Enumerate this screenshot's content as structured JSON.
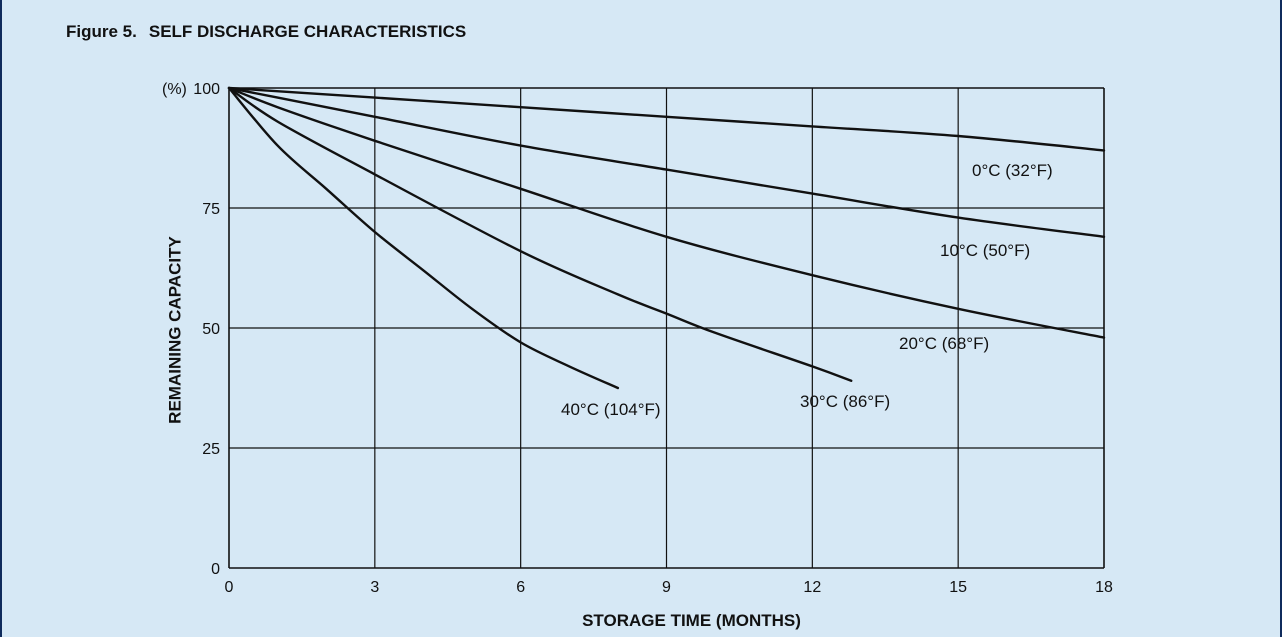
{
  "figure": {
    "number": "Figure 5.",
    "title": "SELF DISCHARGE CHARACTERISTICS"
  },
  "colors": {
    "panel_bg": "#d6e8f5",
    "border": "#0f2b5c",
    "ink": "#111111"
  },
  "chart_data": {
    "type": "line",
    "title": "SELF DISCHARGE CHARACTERISTICS",
    "xlabel": "STORAGE TIME (MONTHS)",
    "ylabel": "REMAINING CAPACITY",
    "y_unit_label": "(%)",
    "xlim": [
      0,
      18
    ],
    "ylim": [
      0,
      100
    ],
    "xticks": [
      0,
      3,
      6,
      9,
      12,
      15,
      18
    ],
    "yticks": [
      0,
      25,
      50,
      75,
      100
    ],
    "grid": true,
    "legend": "inline labels",
    "series": [
      {
        "name": "0°C (32°F)",
        "x": [
          0,
          3,
          6,
          9,
          12,
          15,
          18
        ],
        "y": [
          100,
          98,
          96,
          94,
          92,
          90,
          87
        ]
      },
      {
        "name": "10°C (50°F)",
        "x": [
          0,
          1,
          3,
          6,
          9,
          12,
          15,
          18
        ],
        "y": [
          100,
          98,
          94,
          88,
          83,
          78,
          73,
          69
        ]
      },
      {
        "name": "20°C (68°F)",
        "x": [
          0,
          1,
          3,
          6,
          9,
          12,
          15,
          18
        ],
        "y": [
          100,
          96,
          89,
          79,
          69,
          61,
          54,
          48
        ]
      },
      {
        "name": "30°C (86°F)",
        "x": [
          0,
          1,
          3,
          6,
          8,
          9,
          10,
          12,
          12.8
        ],
        "y": [
          100,
          93,
          82,
          66,
          57,
          53,
          49,
          42,
          39
        ]
      },
      {
        "name": "40°C (104°F)",
        "x": [
          0,
          1,
          2,
          3,
          4,
          5,
          6,
          7,
          8
        ],
        "y": [
          100,
          88,
          79,
          70,
          62,
          54,
          47,
          42,
          37.5
        ]
      }
    ]
  }
}
